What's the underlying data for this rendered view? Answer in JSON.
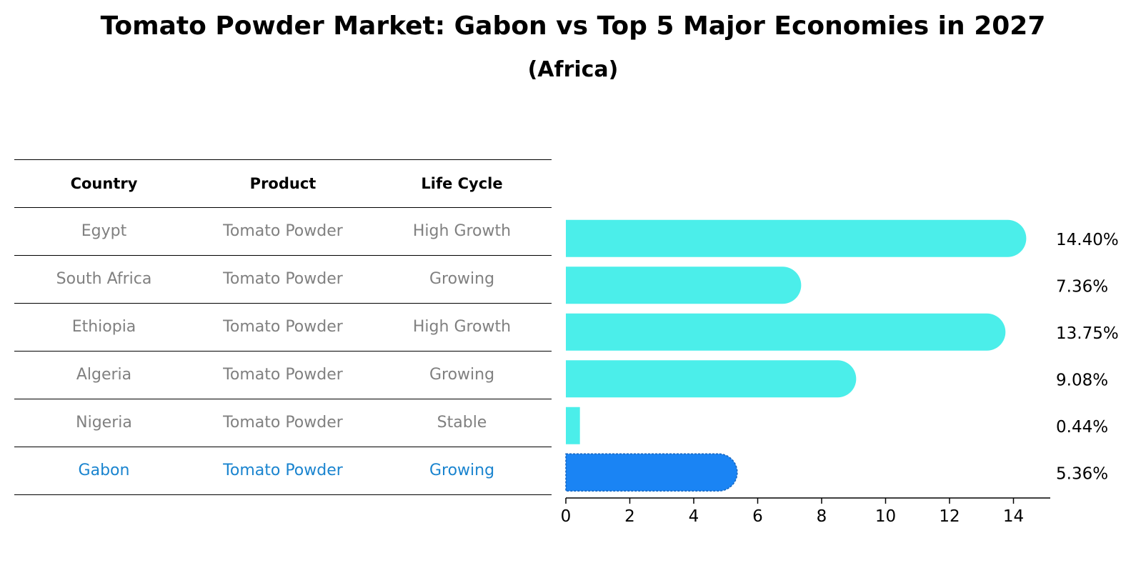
{
  "title": "Tomato Powder Market: Gabon vs Top 5 Major Economies in 2027",
  "subtitle": "(Africa)",
  "table": {
    "headers": [
      "Country",
      "Product",
      "Life Cycle"
    ],
    "rows": [
      {
        "country": "Egypt",
        "product": "Tomato Powder",
        "life_cycle": "High Growth",
        "highlight": false
      },
      {
        "country": "South Africa",
        "product": "Tomato Powder",
        "life_cycle": "Growing",
        "highlight": false
      },
      {
        "country": "Ethiopia",
        "product": "Tomato Powder",
        "life_cycle": "High Growth",
        "highlight": false
      },
      {
        "country": "Algeria",
        "product": "Tomato Powder",
        "life_cycle": "Growing",
        "highlight": false
      },
      {
        "country": "Nigeria",
        "product": "Tomato Powder",
        "life_cycle": "Stable",
        "highlight": false
      },
      {
        "country": "Gabon",
        "product": "Tomato Powder",
        "life_cycle": "Growing",
        "highlight": true
      }
    ]
  },
  "chart_data": {
    "type": "bar",
    "orientation": "horizontal",
    "categories": [
      "Egypt",
      "South Africa",
      "Ethiopia",
      "Algeria",
      "Nigeria",
      "Gabon"
    ],
    "values": [
      14.4,
      7.36,
      13.75,
      9.08,
      0.44,
      5.36
    ],
    "value_labels": [
      "14.40%",
      "7.36%",
      "13.75%",
      "9.08%",
      "0.44%",
      "5.36%"
    ],
    "highlight_category": "Gabon",
    "xlim": [
      0,
      15.2
    ],
    "xticks": [
      0,
      2,
      4,
      6,
      8,
      10,
      12,
      14
    ],
    "xlabel": "",
    "ylabel": "",
    "grid": false,
    "colors": {
      "default": "#4beeea",
      "highlight": "#1a84f4"
    }
  },
  "colors": {
    "text_muted": "#808080",
    "highlight_text": "#1a84cf"
  }
}
